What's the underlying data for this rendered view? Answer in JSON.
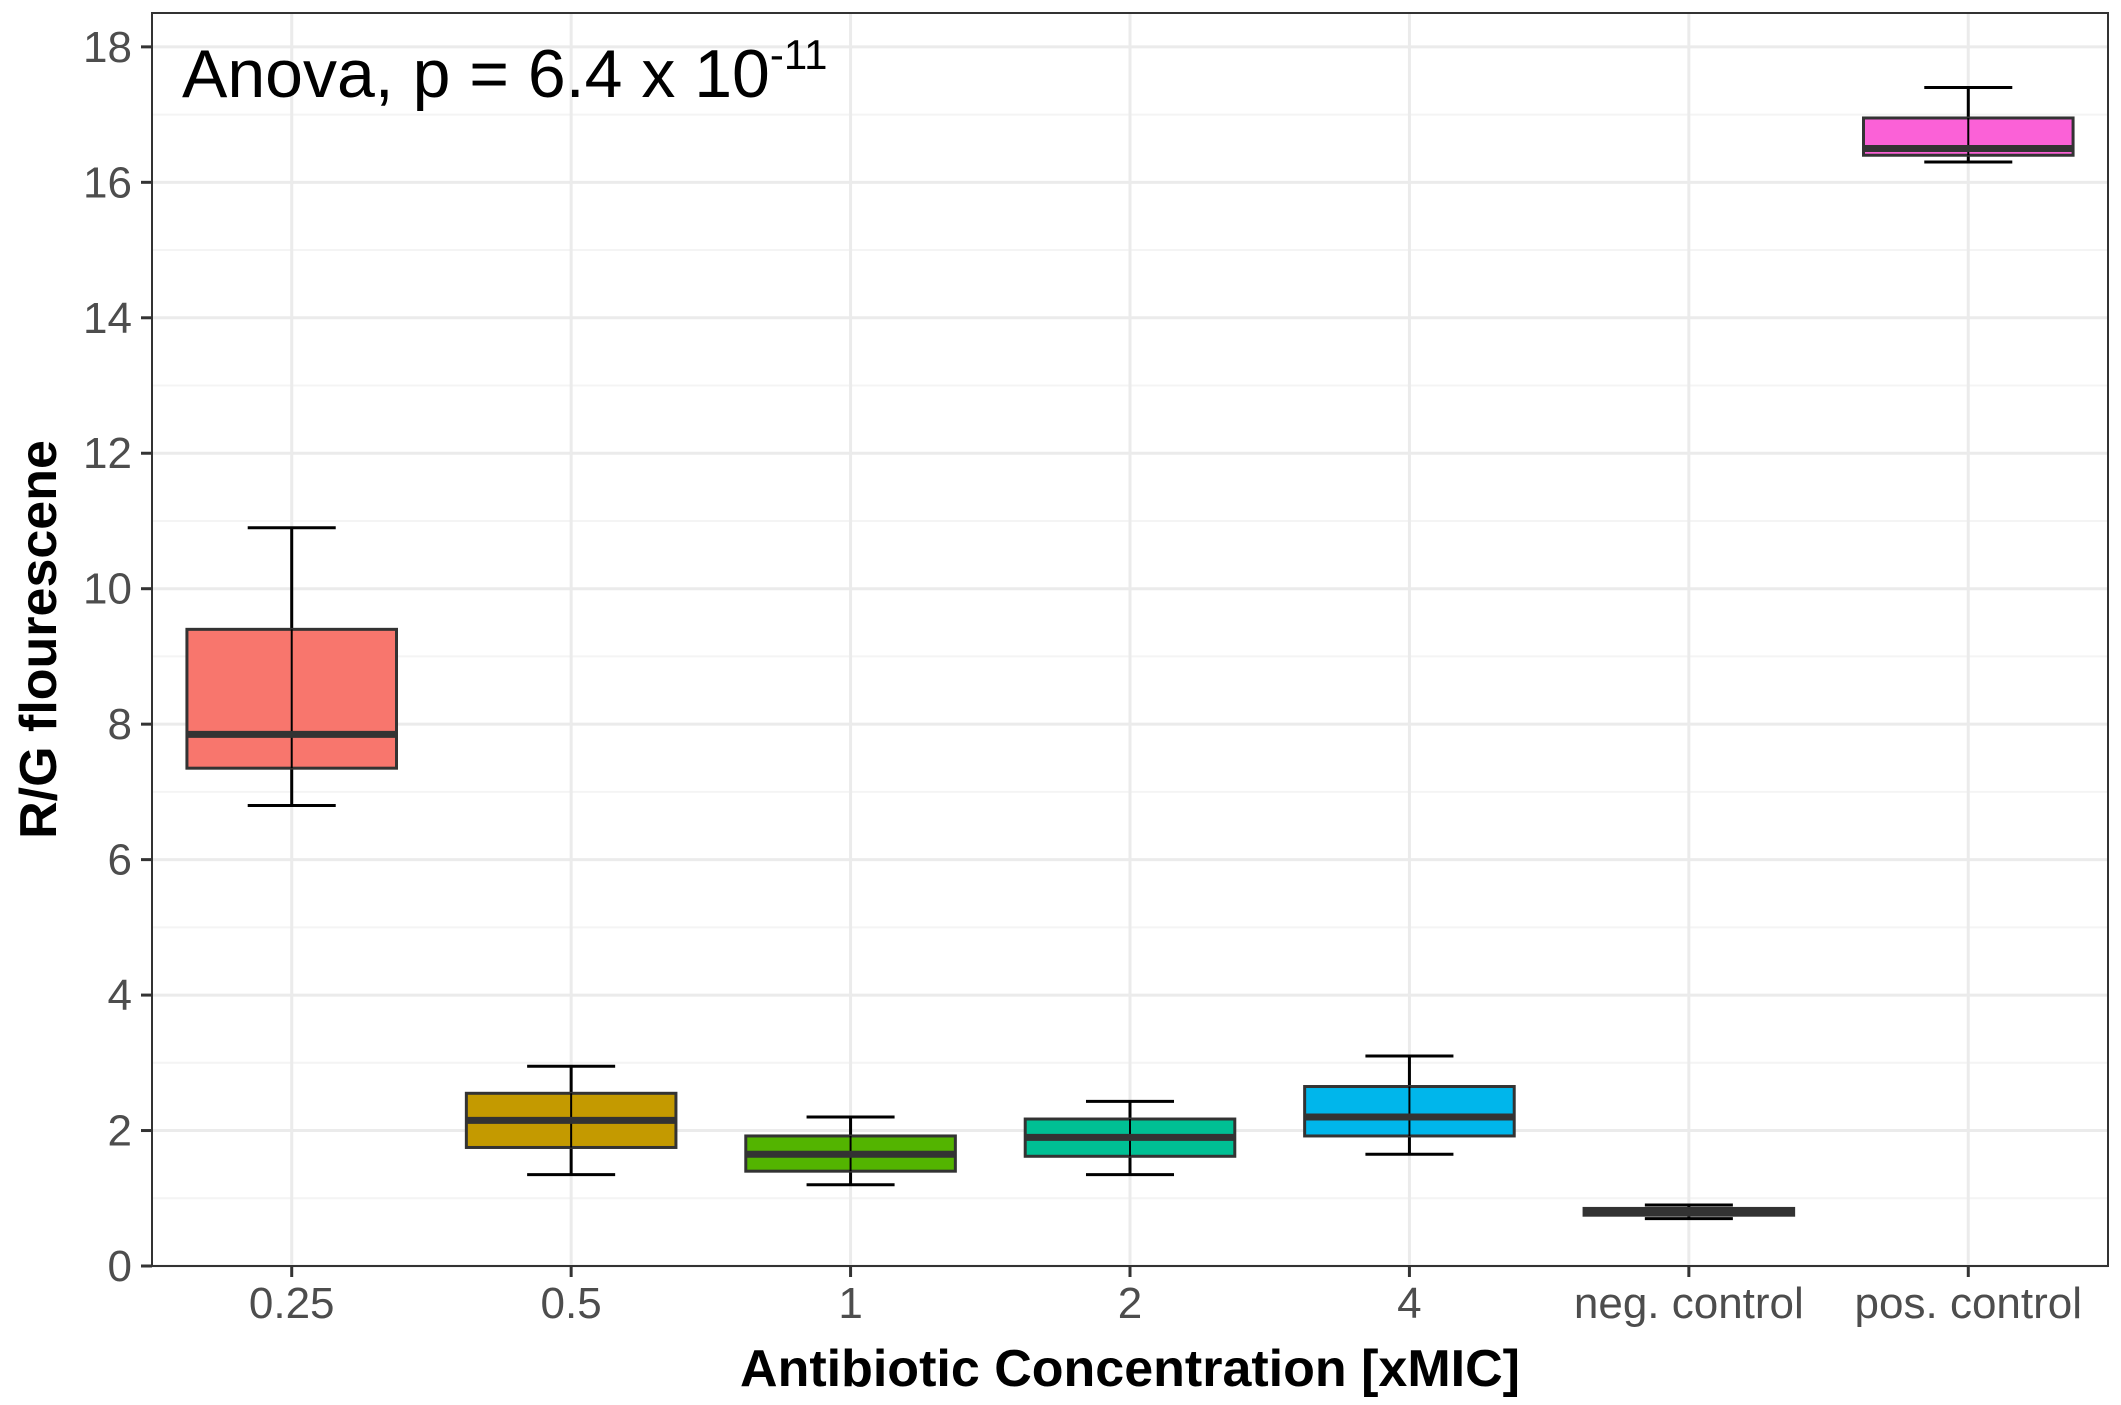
{
  "chart_data": {
    "type": "boxplot",
    "title": "",
    "xlabel": "Antibiotic Concentration [xMIC]",
    "ylabel": "R/G flourescene",
    "ylim": [
      0,
      18.5
    ],
    "yticks": [
      0,
      2,
      4,
      6,
      8,
      10,
      12,
      14,
      16,
      18
    ],
    "ytick_labels": [
      "0",
      "2",
      "4",
      "6",
      "8",
      "10",
      "12",
      "14",
      "16",
      "18"
    ],
    "grid": true,
    "annotation": {
      "prefix": "Anova, p = 6.4 x 10",
      "exponent": "-11"
    },
    "categories": [
      "0.25",
      "0.5",
      "1",
      "2",
      "4",
      "neg. control",
      "pos. control"
    ],
    "boxes": [
      {
        "category": "0.25",
        "whisker_low": 6.8,
        "q1": 7.35,
        "median": 7.85,
        "q3": 9.4,
        "whisker_high": 10.9,
        "color": "#F8766D"
      },
      {
        "category": "0.5",
        "whisker_low": 1.35,
        "q1": 1.75,
        "median": 2.15,
        "q3": 2.55,
        "whisker_high": 2.95,
        "color": "#C49A00"
      },
      {
        "category": "1",
        "whisker_low": 1.2,
        "q1": 1.4,
        "median": 1.65,
        "q3": 1.92,
        "whisker_high": 2.2,
        "color": "#53B400"
      },
      {
        "category": "2",
        "whisker_low": 1.35,
        "q1": 1.62,
        "median": 1.9,
        "q3": 2.17,
        "whisker_high": 2.43,
        "color": "#00C094"
      },
      {
        "category": "4",
        "whisker_low": 1.65,
        "q1": 1.92,
        "median": 2.2,
        "q3": 2.65,
        "whisker_high": 3.1,
        "color": "#00B6EB"
      },
      {
        "category": "neg. control",
        "whisker_low": 0.7,
        "q1": 0.75,
        "median": 0.8,
        "q3": 0.85,
        "whisker_high": 0.9,
        "color": "#A58AFF"
      },
      {
        "category": "pos. control",
        "whisker_low": 16.3,
        "q1": 16.4,
        "median": 16.5,
        "q3": 16.95,
        "whisker_high": 17.4,
        "color": "#FB61D7"
      }
    ]
  }
}
